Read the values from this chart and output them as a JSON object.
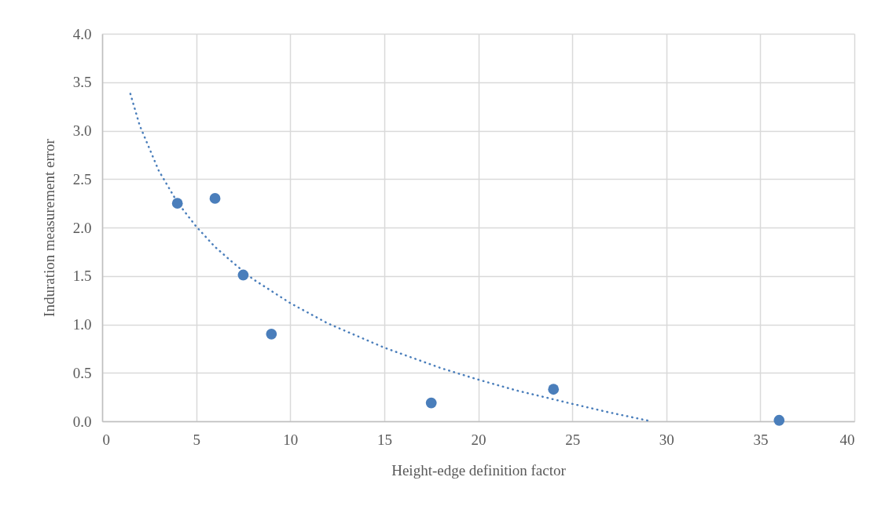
{
  "chart_data": {
    "type": "scatter",
    "xlabel": "Height-edge definition factor",
    "ylabel": "Induration measurement error",
    "xlim": [
      0,
      40
    ],
    "xticks": [
      0,
      5,
      10,
      15,
      20,
      25,
      30,
      35,
      40
    ],
    "ylim": [
      0,
      4
    ],
    "yticks": [
      {
        "value": 0,
        "label": "0.0"
      },
      {
        "value": 0.5,
        "label": "0.5"
      },
      {
        "value": 1,
        "label": "1.0"
      },
      {
        "value": 1.5,
        "label": "1.5"
      },
      {
        "value": 2,
        "label": "2.0"
      },
      {
        "value": 2.5,
        "label": "2.5"
      },
      {
        "value": 3,
        "label": "3.0"
      },
      {
        "value": 3.5,
        "label": "3.5"
      },
      {
        "value": 4,
        "label": "4.0"
      }
    ],
    "grid": true,
    "series": [
      {
        "type": "line",
        "color": "#4a7ebb",
        "line_style": "dotted",
        "marker": "none",
        "x": [
          1.5,
          2,
          3,
          4,
          5,
          6,
          7,
          8,
          10,
          12,
          15,
          18,
          20,
          22,
          25,
          27,
          29.2
        ],
        "values": [
          3.38,
          3.05,
          2.59,
          2.26,
          2.01,
          1.8,
          1.63,
          1.47,
          1.22,
          1.01,
          0.76,
          0.55,
          0.43,
          0.32,
          0.18,
          0.09,
          0.0
        ]
      },
      {
        "color": "#4a7ebb",
        "marker": "circle",
        "x": [
          4,
          6,
          7.5,
          9,
          17.5,
          24,
          36
        ],
        "values": [
          2.25,
          2.3,
          1.51,
          0.9,
          0.19,
          0.33,
          0.01
        ]
      }
    ]
  }
}
